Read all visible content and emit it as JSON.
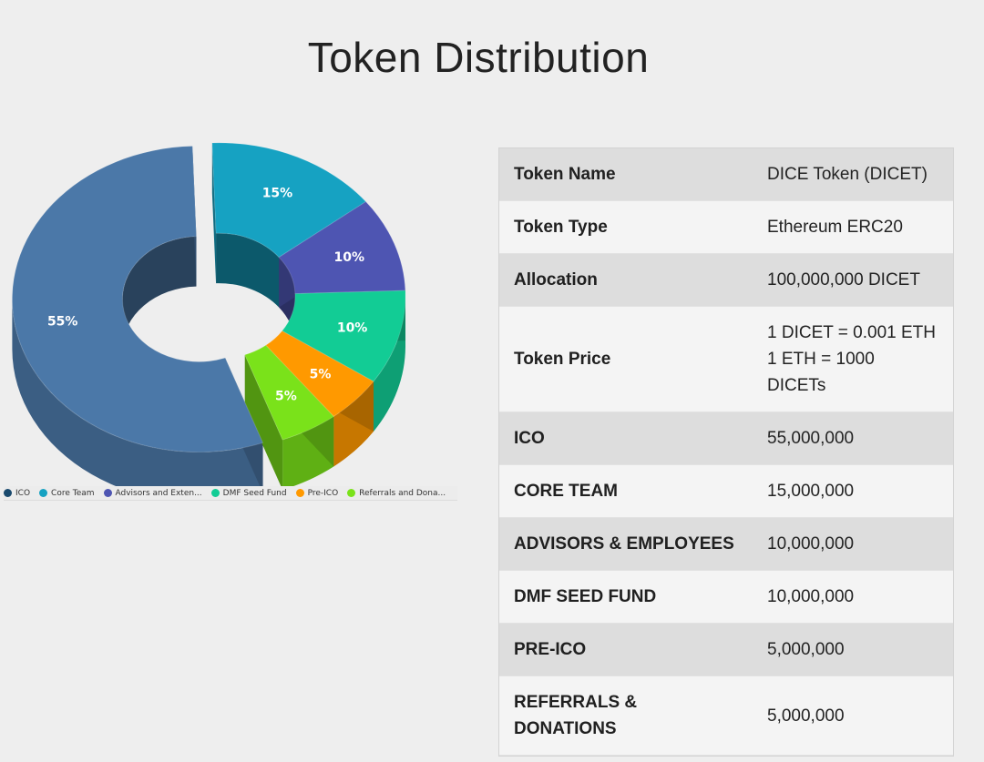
{
  "title": "Token Distribution",
  "chart_data": {
    "type": "pie",
    "categories": [
      "ICO",
      "Core Team",
      "Advisors and Exten...",
      "DMF Seed Fund",
      "Pre-ICO",
      "Referrals and Dona..."
    ],
    "values": [
      55,
      15,
      10,
      10,
      5,
      5
    ],
    "value_labels": [
      "55%",
      "15%",
      "10%",
      "10%",
      "5%",
      "5%"
    ],
    "colors": [
      "#4b78a8",
      "#16a2c2",
      "#4e55b2",
      "#12cc95",
      "#ff9900",
      "#7ae21a"
    ],
    "legend_colors": [
      "#1a4a6e",
      "#16a2c2",
      "#4e55b2",
      "#12cc95",
      "#ff9900",
      "#7ae21a"
    ],
    "style": "3d-donut",
    "legend_position": "bottom"
  },
  "table": {
    "rows": [
      {
        "key": "Token Name",
        "value": "DICE Token (DICET)"
      },
      {
        "key": "Token Type",
        "value": "Ethereum ERC20"
      },
      {
        "key": "Allocation",
        "value": "100,000,000 DICET"
      },
      {
        "key": "Token Price",
        "value": "1 DICET = 0.001 ETH\n1 ETH = 1000\nDICETs"
      },
      {
        "key": "ICO",
        "value": "55,000,000"
      },
      {
        "key": "CORE TEAM",
        "value": "15,000,000"
      },
      {
        "key": "ADVISORS & EMPLOYEES",
        "value": "10,000,000"
      },
      {
        "key": "DMF SEED FUND",
        "value": "10,000,000"
      },
      {
        "key": "PRE-ICO",
        "value": "5,000,000"
      },
      {
        "key": "REFERRALS &\nDONATIONS",
        "value": "5,000,000"
      }
    ]
  }
}
